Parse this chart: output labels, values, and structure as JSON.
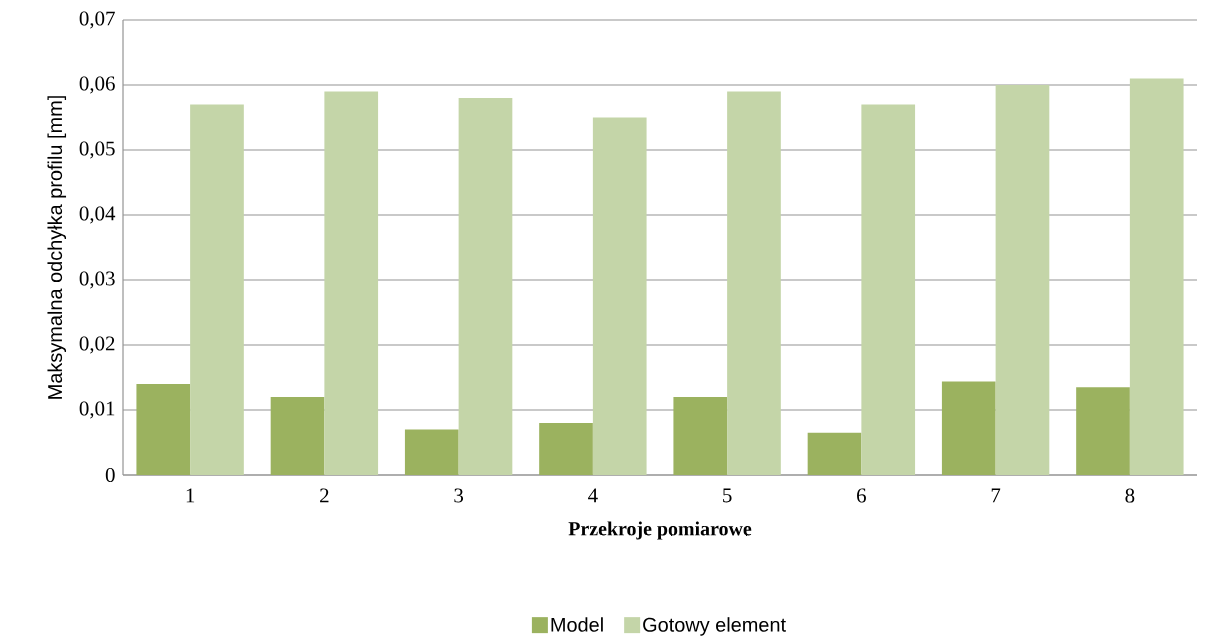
{
  "chart_data": {
    "type": "bar",
    "xlabel": "Przekroje pomiarowe",
    "ylabel": "Maksymalna odchyłka profilu [mm]",
    "categories": [
      "1",
      "2",
      "3",
      "4",
      "5",
      "6",
      "7",
      "8"
    ],
    "series": [
      {
        "name": "Model",
        "color": "#9bb25f",
        "values": [
          0.014,
          0.012,
          0.007,
          0.008,
          0.012,
          0.0065,
          0.0144,
          0.0135
        ]
      },
      {
        "name": "Gotowy element",
        "color": "#c4d5a8",
        "values": [
          0.057,
          0.059,
          0.058,
          0.055,
          0.059,
          0.057,
          0.06,
          0.061
        ]
      }
    ],
    "ylim": [
      0,
      0.07
    ],
    "yticks": [
      {
        "value": 0,
        "label": "0"
      },
      {
        "value": 0.01,
        "label": "0,01"
      },
      {
        "value": 0.02,
        "label": "0,02"
      },
      {
        "value": 0.03,
        "label": "0,03"
      },
      {
        "value": 0.04,
        "label": "0,04"
      },
      {
        "value": 0.05,
        "label": "0,05"
      },
      {
        "value": 0.06,
        "label": "0,06"
      },
      {
        "value": 0.07,
        "label": "0,07"
      }
    ],
    "grid": "y",
    "legend": "bottom"
  }
}
